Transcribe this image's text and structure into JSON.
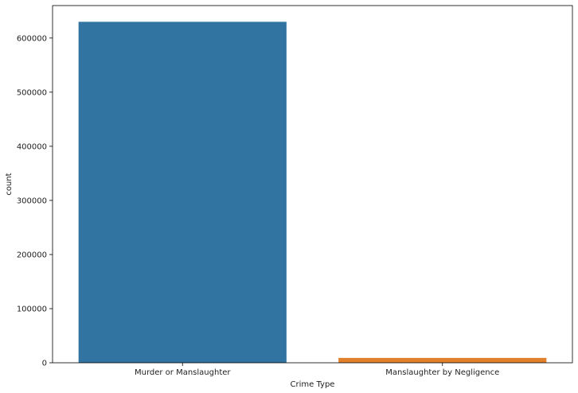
{
  "chart_data": {
    "type": "bar",
    "title": "",
    "xlabel": "Crime Type",
    "ylabel": "count",
    "categories": [
      "Murder or Manslaughter",
      "Manslaughter by Negligence"
    ],
    "values": [
      630000,
      9000
    ],
    "ylim": [
      0,
      660000
    ],
    "yticks": [
      0,
      100000,
      200000,
      300000,
      400000,
      500000,
      600000
    ],
    "ytick_labels": [
      "0",
      "100000",
      "200000",
      "300000",
      "400000",
      "500000",
      "600000"
    ],
    "colors": [
      "#3274a1",
      "#e1812c"
    ],
    "grid": false,
    "legend": false
  }
}
